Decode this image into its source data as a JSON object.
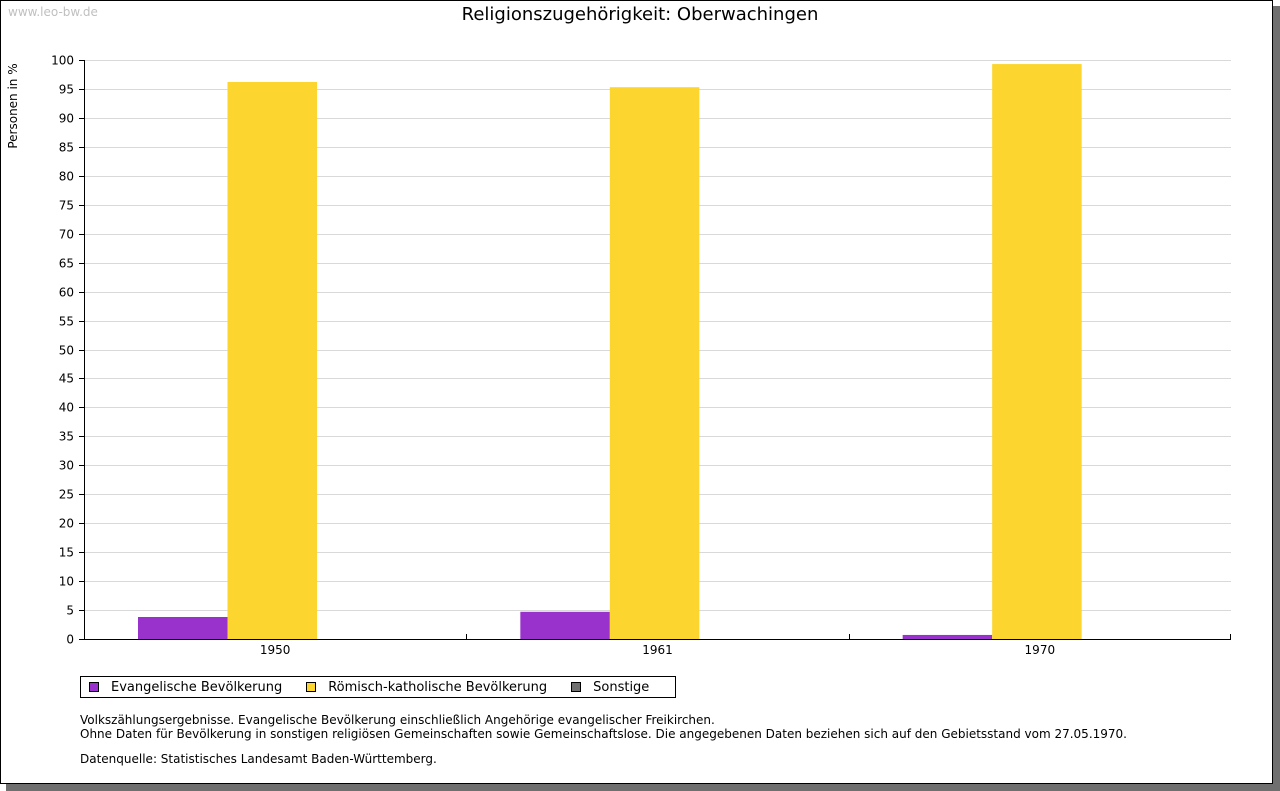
{
  "watermark": "www.leo-bw.de",
  "chart_data": {
    "type": "bar",
    "title": "Religionszugehörigkeit: Oberwachingen",
    "xlabel": "",
    "ylabel": "Personen in %",
    "ylim": [
      0,
      100
    ],
    "ytick_step": 5,
    "grid": true,
    "categories": [
      "1950",
      "1961",
      "1970"
    ],
    "series": [
      {
        "name": "Evangelische Bevölkerung",
        "color": "#9932cc",
        "values": [
          3.8,
          4.7,
          0.7
        ]
      },
      {
        "name": "Römisch-katholische Bevölkerung",
        "color": "#fcd62e",
        "values": [
          96.2,
          95.3,
          99.3
        ]
      },
      {
        "name": "Sonstige",
        "color": "#707070",
        "values": [
          0,
          0,
          0
        ]
      }
    ]
  },
  "notes": [
    "Volkszählungsergebnisse. Evangelische Bevölkerung einschließlich Angehörige evangelischer Freikirchen.",
    "Ohne Daten für Bevölkerung in sonstigen religiösen Gemeinschaften sowie Gemeinschaftslose. Die angegebenen Daten beziehen sich auf den Gebietsstand vom 27.05.1970."
  ],
  "source": "Datenquelle: Statistisches Landesamt Baden-Württemberg."
}
